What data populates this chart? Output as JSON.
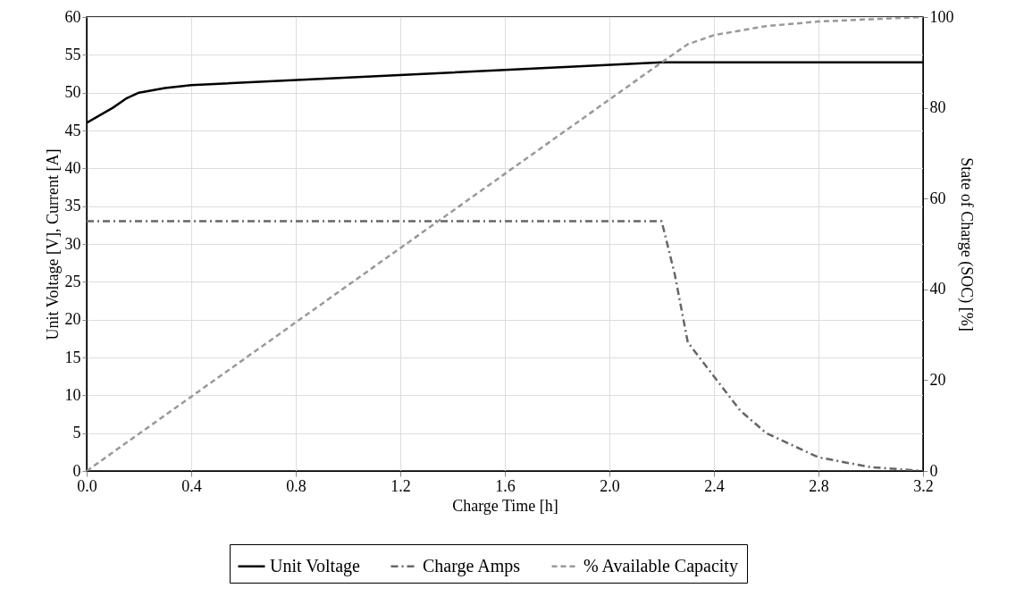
{
  "chart_data": {
    "type": "line",
    "xlabel": "Charge Time [h]",
    "ylabel": "Unit Voltage [V], Current [A]",
    "y2label": "State of Charge (SOC) [%]",
    "xlim": [
      0,
      3.2
    ],
    "xticks": [
      {
        "value": 0,
        "label": "0.0"
      },
      0.4,
      0.8,
      1.2,
      1.6,
      {
        "value": 2,
        "label": "2.0"
      },
      2.4,
      2.8,
      3.2
    ],
    "ylim": [
      0,
      60
    ],
    "yticks": [
      0,
      5,
      10,
      15,
      20,
      25,
      30,
      35,
      40,
      45,
      50,
      55,
      60
    ],
    "y2lim": [
      0,
      100
    ],
    "y2ticks": [
      0,
      20,
      40,
      60,
      80,
      100
    ],
    "grid": true,
    "legend": "bottom",
    "marker": "none",
    "series": [
      {
        "name": "Unit Voltage",
        "color": "#000000",
        "line_style": "solid",
        "x": [
          0,
          0.1,
          0.15,
          0.2,
          0.3,
          0.4,
          2.2,
          3.2
        ],
        "values": [
          46,
          48,
          49.2,
          50,
          50.6,
          51,
          54,
          54
        ]
      },
      {
        "name": "Charge Amps",
        "color": "#666666",
        "line_style": "dashdot",
        "x": [
          0,
          2.2,
          2.25,
          2.3,
          2.4,
          2.5,
          2.6,
          2.8,
          3.0,
          3.2
        ],
        "values": [
          33,
          33,
          26,
          17,
          12.5,
          8,
          5,
          1.8,
          0.5,
          0
        ]
      },
      {
        "name": "% Available Capacity",
        "color": "#999999",
        "line_style": "dashed",
        "axis": "y2",
        "x": [
          0,
          2.2,
          2.3,
          2.4,
          2.6,
          2.8,
          3.0,
          3.2
        ],
        "values": [
          0,
          90,
          94,
          96,
          98,
          99,
          99.5,
          100
        ]
      }
    ]
  }
}
